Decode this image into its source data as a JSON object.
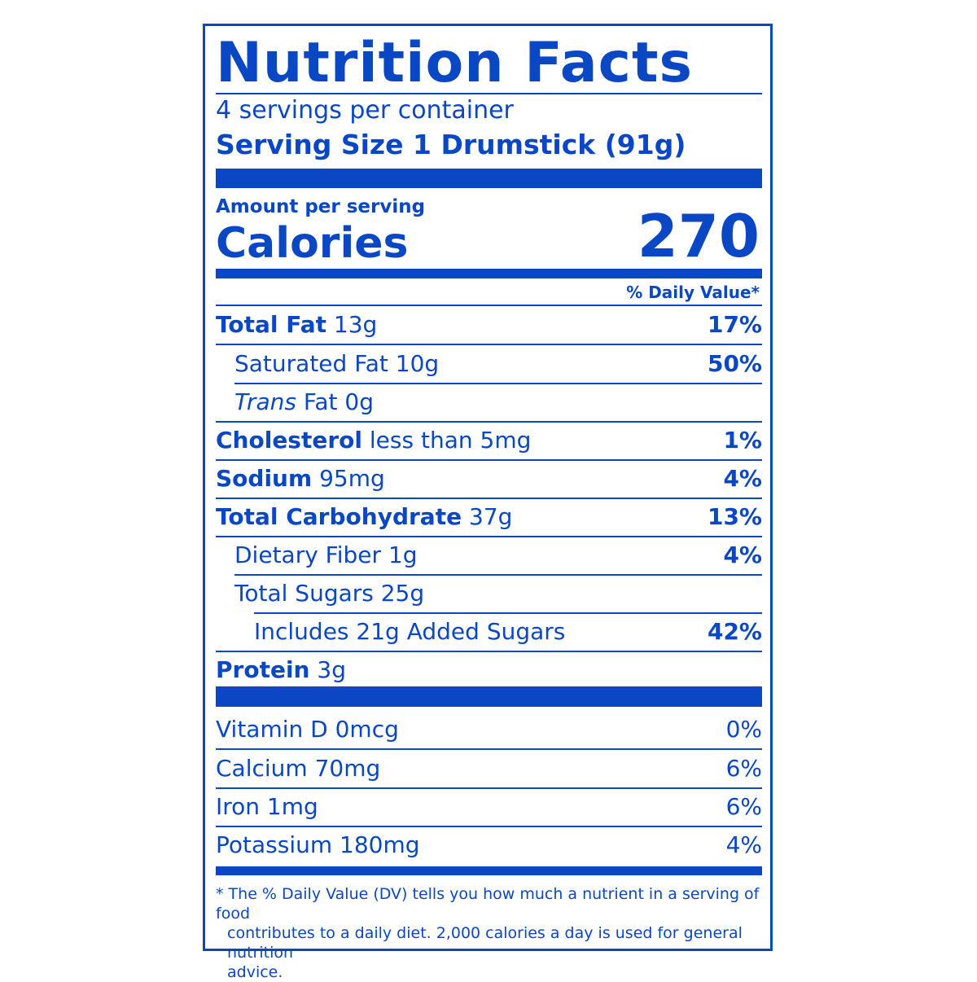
{
  "title": "Nutrition Facts",
  "servings_per_container": "4 servings per container",
  "serving_size": "Serving Size 1 Drumstick (91g)",
  "amount_per_serving": "Amount per serving",
  "calories_label": "Calories",
  "calories_value": "270",
  "daily_value_header": "% Daily Value*",
  "nutrients": {
    "total_fat": {
      "name": "Total Fat",
      "amount": "13g",
      "dv": "17%"
    },
    "saturated_fat": {
      "name": "Saturated Fat 10g",
      "dv": "50%"
    },
    "trans_fat": {
      "name_italic": "Trans",
      "name_rest": "Fat 0g"
    },
    "cholesterol": {
      "name": "Cholesterol",
      "amount": "less than 5mg",
      "dv": "1%"
    },
    "sodium": {
      "name": "Sodium",
      "amount": "95mg",
      "dv": "4%"
    },
    "total_carbohydrate": {
      "name": "Total Carbohydrate",
      "amount": "37g",
      "dv": "13%"
    },
    "dietary_fiber": {
      "name": "Dietary Fiber 1g",
      "dv": "4%"
    },
    "total_sugars": {
      "name": "Total Sugars 25g"
    },
    "added_sugars": {
      "name": "Includes 21g Added Sugars",
      "dv": "42%"
    },
    "protein": {
      "name": "Protein",
      "amount": "3g"
    }
  },
  "vitamins": [
    {
      "name": "Vitamin D 0mcg",
      "dv": "0%"
    },
    {
      "name": "Calcium 70mg",
      "dv": "6%"
    },
    {
      "name": "Iron 1mg",
      "dv": "6%"
    },
    {
      "name": "Potassium 180mg",
      "dv": "4%"
    }
  ],
  "footnote_line1": "* The % Daily Value (DV) tells you how much a nutrient in a serving of food",
  "footnote_line2": "contributes to a daily diet. 2,000 calories a day is used for general nutrition",
  "footnote_line3": "advice.",
  "colors": {
    "ink": "#0a47c4",
    "background": "#ffffff"
  }
}
